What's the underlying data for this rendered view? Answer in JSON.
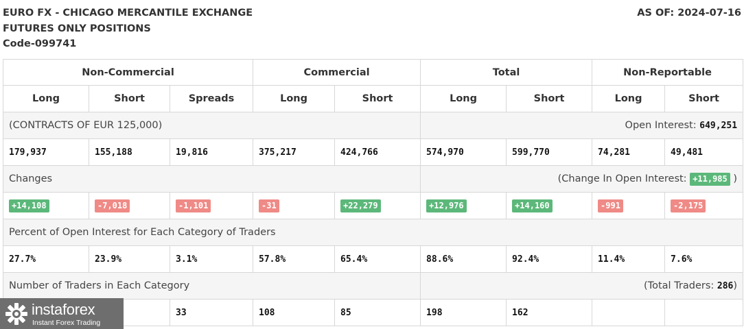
{
  "header": {
    "line1": "EURO FX - CHICAGO MERCANTILE EXCHANGE",
    "line2": "FUTURES ONLY POSITIONS",
    "line3": "Code-099741",
    "as_of": "AS OF: 2024-07-16"
  },
  "groups": {
    "non_commercial": "Non-Commercial",
    "commercial": "Commercial",
    "total": "Total",
    "non_reportable": "Non-Reportable"
  },
  "columns": [
    "Long",
    "Short",
    "Spreads",
    "Long",
    "Short",
    "Long",
    "Short",
    "Long",
    "Short"
  ],
  "contracts": {
    "label": "(CONTRACTS OF EUR 125,000)",
    "open_interest_label": "Open Interest:",
    "open_interest_value": "649,251",
    "values": [
      "179,937",
      "155,188",
      "19,816",
      "375,217",
      "424,766",
      "574,970",
      "599,770",
      "74,281",
      "49,481"
    ]
  },
  "changes": {
    "label": "Changes",
    "change_oi_label": "(Change In Open Interest:",
    "change_oi_value": "+11,985",
    "change_oi_close": ")",
    "values": [
      "+14,108",
      "-7,018",
      "-1,101",
      "-31",
      "+22,279",
      "+12,976",
      "+14,160",
      "-991",
      "-2,175"
    ]
  },
  "percent": {
    "label": "Percent of Open Interest for Each Category of Traders",
    "values": [
      "27.7%",
      "23.9%",
      "3.1%",
      "57.8%",
      "65.4%",
      "88.6%",
      "92.4%",
      "11.4%",
      "7.6%"
    ]
  },
  "traders": {
    "label": "Number of Traders in Each Category",
    "total_label": "(Total Traders:",
    "total_value": "286",
    "total_close": ")",
    "values": [
      "",
      "",
      "33",
      "108",
      "85",
      "198",
      "162",
      "",
      ""
    ]
  },
  "watermark": {
    "name": "instaforex",
    "tagline": "Instant Forex Trading"
  },
  "colors": {
    "positive_badge": "#5cb87a",
    "negative_badge": "#ef8a86",
    "label_row_bg": "#f5f5f5",
    "border": "#d7d7d7",
    "logo_bg": "#6e6e6e"
  }
}
